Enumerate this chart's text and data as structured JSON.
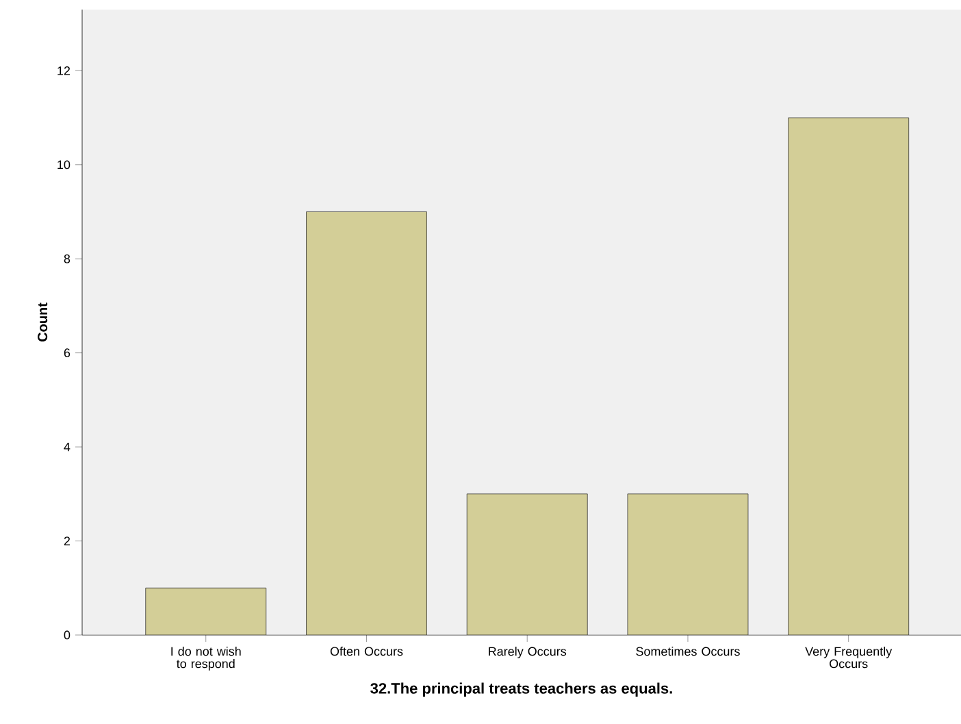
{
  "chart_data": {
    "type": "bar",
    "xlabel": "32.The principal treats teachers as equals.",
    "ylabel": "Count",
    "categories": [
      "I do not wish to respond",
      "Often Occurs",
      "Rarely Occurs",
      "Sometimes Occurs",
      "Very Frequently Occurs"
    ],
    "values": [
      1,
      9,
      3,
      3,
      11
    ],
    "color": "#d3ce97",
    "ylim": [
      0,
      13.3
    ],
    "yticks": [
      0,
      2,
      4,
      6,
      8,
      10,
      12
    ],
    "grid": false
  }
}
